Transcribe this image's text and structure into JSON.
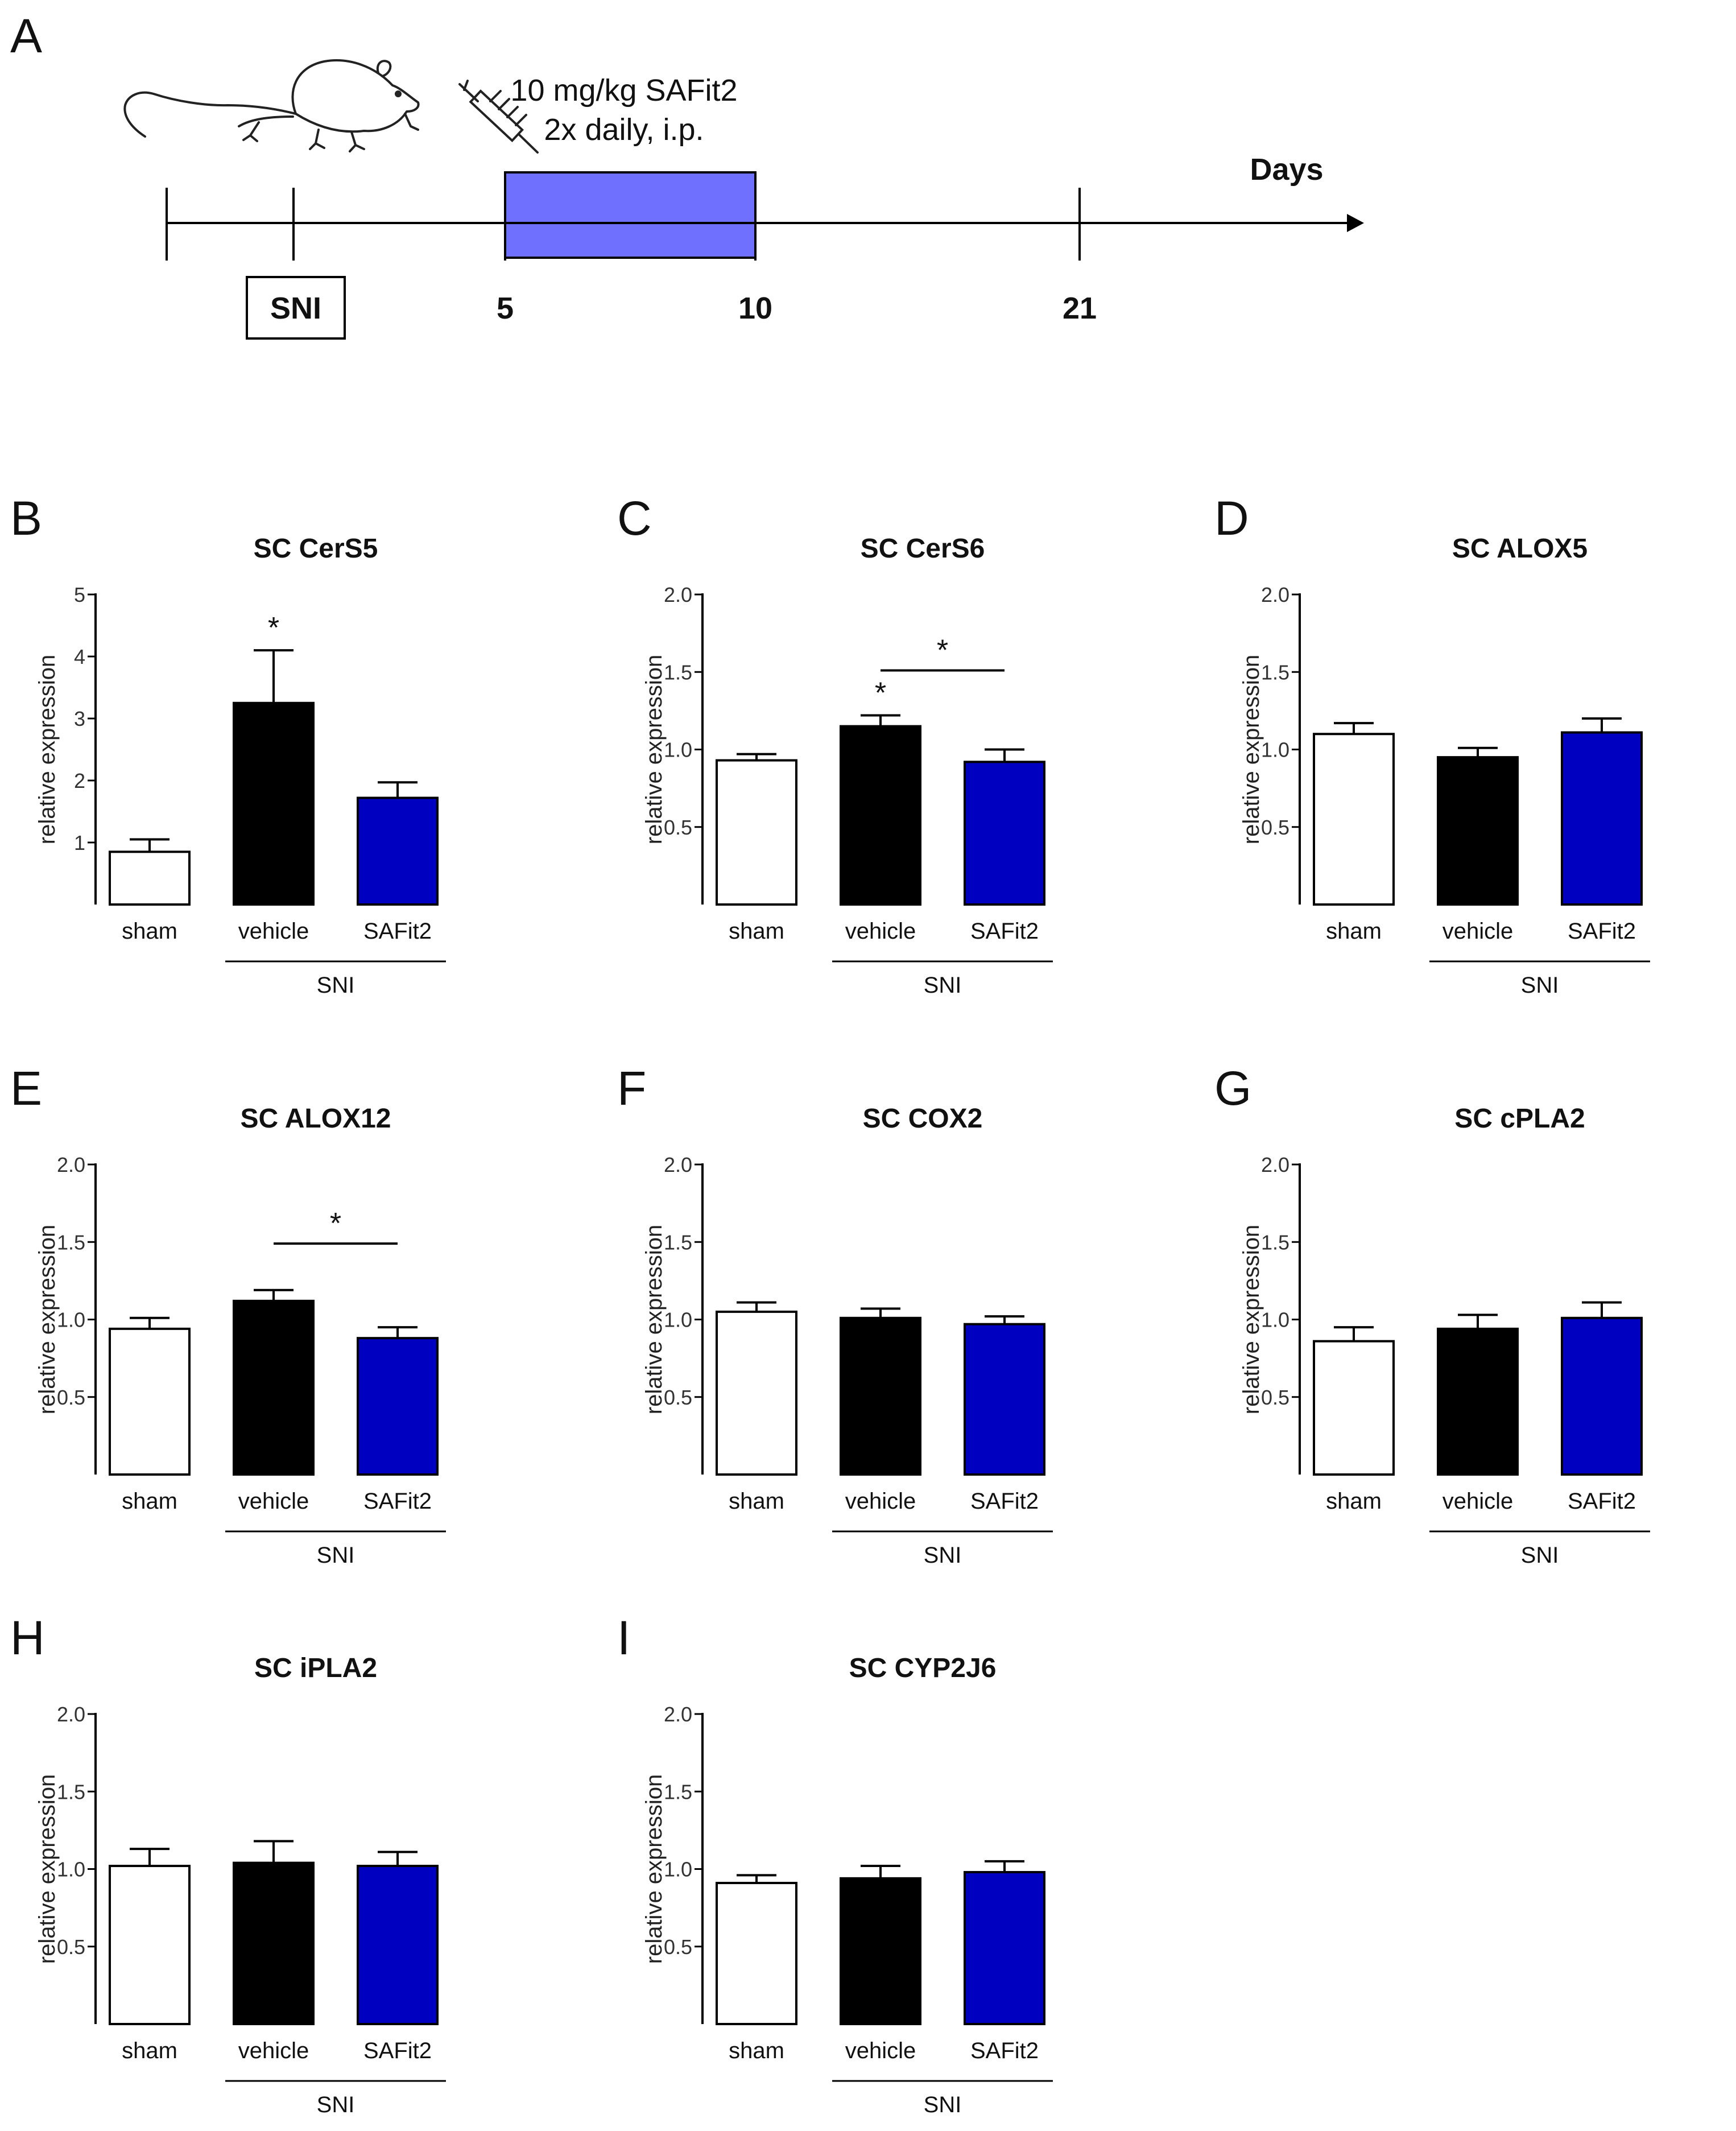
{
  "panel_a": {
    "letter": "A",
    "treatment_line1": "10 mg/kg SAFit2",
    "treatment_line2": "2x daily, i.p.",
    "axis_label": "Days",
    "sni_box": "SNI",
    "day_start": "5",
    "day_mid": "10",
    "day_end": "21",
    "colors": {
      "treatment_box": "#7070ff",
      "line": "#000000"
    },
    "icons": [
      "mouse-icon",
      "syringe-icon"
    ]
  },
  "colors": {
    "sham": "#ffffff",
    "vehicle": "#000000",
    "safit2": "#0000c0",
    "outline": "#000000"
  },
  "chart_data": [
    {
      "letter": "B",
      "type": "bar",
      "title": "SC CerS5",
      "ylabel": "relative expression",
      "ylim": [
        0,
        5
      ],
      "yticks": [
        1,
        2,
        3,
        4,
        5
      ],
      "ytick_labels": [
        "1",
        "2",
        "3",
        "4",
        "5"
      ],
      "categories": [
        "sham",
        "vehicle",
        "SAFit2"
      ],
      "group_label": "SNI",
      "values": [
        0.85,
        3.25,
        1.72
      ],
      "errors": [
        0.2,
        0.85,
        0.25
      ],
      "sig_above": [
        {
          "bar": 1,
          "label": "*"
        }
      ],
      "sig_bracket": null
    },
    {
      "letter": "C",
      "type": "bar",
      "title": "SC CerS6",
      "ylabel": "relative expression",
      "ylim": [
        0,
        2
      ],
      "yticks": [
        0.5,
        1,
        1.5,
        2
      ],
      "ytick_labels": [
        "0.5",
        "1.0",
        "1.5",
        "2.0"
      ],
      "categories": [
        "sham",
        "vehicle",
        "SAFit2"
      ],
      "group_label": "SNI",
      "values": [
        0.93,
        1.15,
        0.92
      ],
      "errors": [
        0.04,
        0.07,
        0.08
      ],
      "sig_above": [
        {
          "bar": 1,
          "label": "*"
        }
      ],
      "sig_bracket": {
        "from": 1,
        "to": 2,
        "y": 1.51,
        "label": "*"
      }
    },
    {
      "letter": "D",
      "type": "bar",
      "title": "SC ALOX5",
      "ylabel": "relative expression",
      "ylim": [
        0,
        2
      ],
      "yticks": [
        0.5,
        1,
        1.5,
        2
      ],
      "ytick_labels": [
        "0.5",
        "1.0",
        "1.5",
        "2.0"
      ],
      "categories": [
        "sham",
        "vehicle",
        "SAFit2"
      ],
      "group_label": "SNI",
      "values": [
        1.1,
        0.95,
        1.11
      ],
      "errors": [
        0.07,
        0.06,
        0.09
      ],
      "sig_above": [],
      "sig_bracket": null
    },
    {
      "letter": "E",
      "type": "bar",
      "title": "SC ALOX12",
      "ylabel": "relative expression",
      "ylim": [
        0,
        2
      ],
      "yticks": [
        0.5,
        1,
        1.5,
        2
      ],
      "ytick_labels": [
        "0.5",
        "1.0",
        "1.5",
        "2.0"
      ],
      "categories": [
        "sham",
        "vehicle",
        "SAFit2"
      ],
      "group_label": "SNI",
      "values": [
        0.94,
        1.12,
        0.88
      ],
      "errors": [
        0.07,
        0.07,
        0.07
      ],
      "sig_above": [],
      "sig_bracket": {
        "from": 1,
        "to": 2,
        "y": 1.49,
        "label": "*"
      }
    },
    {
      "letter": "F",
      "type": "bar",
      "title": "SC COX2",
      "ylabel": "relative expression",
      "ylim": [
        0,
        2
      ],
      "yticks": [
        0.5,
        1,
        1.5,
        2
      ],
      "ytick_labels": [
        "0.5",
        "1.0",
        "1.5",
        "2.0"
      ],
      "categories": [
        "sham",
        "vehicle",
        "SAFit2"
      ],
      "group_label": "SNI",
      "values": [
        1.05,
        1.01,
        0.97
      ],
      "errors": [
        0.06,
        0.06,
        0.05
      ],
      "sig_above": [],
      "sig_bracket": null
    },
    {
      "letter": "G",
      "type": "bar",
      "title": "SC cPLA2",
      "ylabel": "relative expression",
      "ylim": [
        0,
        2
      ],
      "yticks": [
        0.5,
        1,
        1.5,
        2
      ],
      "ytick_labels": [
        "0.5",
        "1.0",
        "1.5",
        "2.0"
      ],
      "categories": [
        "sham",
        "vehicle",
        "SAFit2"
      ],
      "group_label": "SNI",
      "values": [
        0.86,
        0.94,
        1.01
      ],
      "errors": [
        0.09,
        0.09,
        0.1
      ],
      "sig_above": [],
      "sig_bracket": null
    },
    {
      "letter": "H",
      "type": "bar",
      "title": "SC iPLA2",
      "ylabel": "relative expression",
      "ylim": [
        0,
        2
      ],
      "yticks": [
        0.5,
        1,
        1.5,
        2
      ],
      "ytick_labels": [
        "0.5",
        "1.0",
        "1.5",
        "2.0"
      ],
      "categories": [
        "sham",
        "vehicle",
        "SAFit2"
      ],
      "group_label": "SNI",
      "values": [
        1.02,
        1.04,
        1.02
      ],
      "errors": [
        0.11,
        0.14,
        0.09
      ],
      "sig_above": [],
      "sig_bracket": null
    },
    {
      "letter": "I",
      "type": "bar",
      "title": "SC CYP2J6",
      "ylabel": "relative expression",
      "ylim": [
        0,
        2
      ],
      "yticks": [
        0.5,
        1,
        1.5,
        2
      ],
      "ytick_labels": [
        "0.5",
        "1.0",
        "1.5",
        "2.0"
      ],
      "categories": [
        "sham",
        "vehicle",
        "SAFit2"
      ],
      "group_label": "SNI",
      "values": [
        0.91,
        0.94,
        0.98
      ],
      "errors": [
        0.05,
        0.08,
        0.07
      ],
      "sig_above": [],
      "sig_bracket": null
    }
  ]
}
